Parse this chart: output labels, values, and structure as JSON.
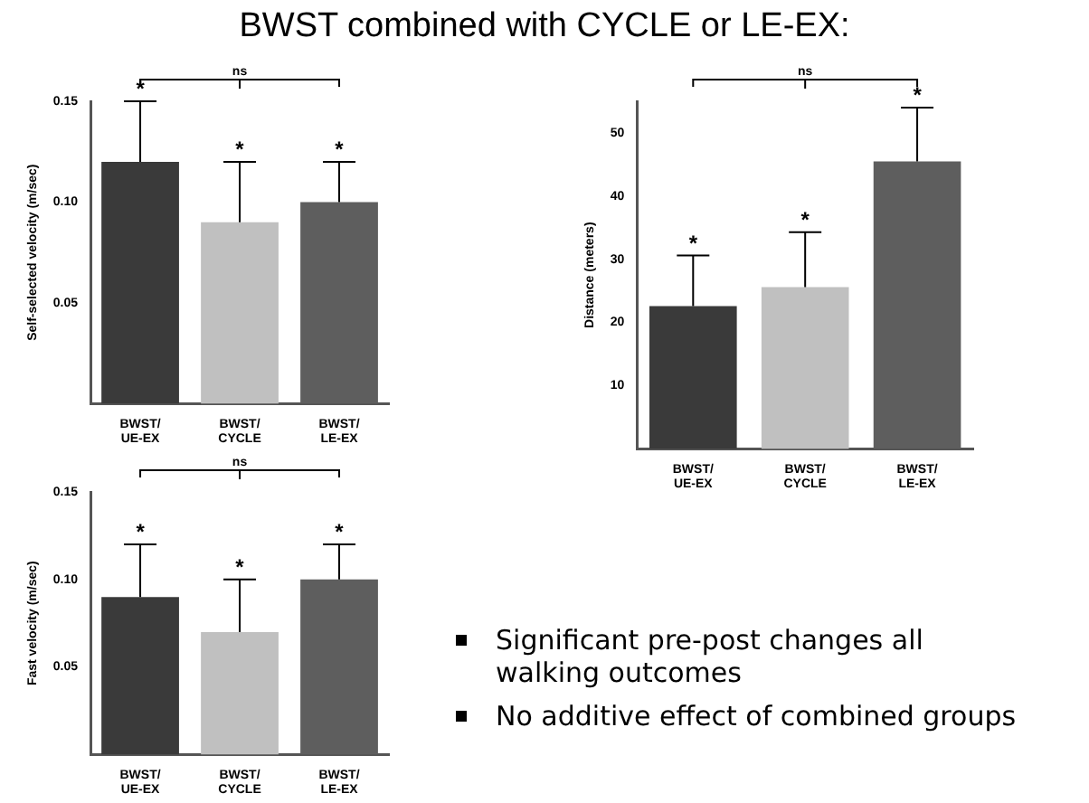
{
  "chart_data": [
    {
      "type": "bar",
      "title": "BWST combined with CYCLE or LE-EX:",
      "ylabel": "Self-selected velocity (m/sec)",
      "categories": [
        "BWST/\nUE-EX",
        "BWST/\nCYCLE",
        "BWST/\nLE-EX"
      ],
      "values": [
        0.12,
        0.09,
        0.1
      ],
      "colors": [
        "#3a3a3a",
        "#c0c0c0",
        "#5e5e5e"
      ],
      "errors": [
        [
          0.12,
          0.15
        ],
        [
          0.09,
          0.12
        ],
        [
          0.1,
          0.12
        ]
      ],
      "ylim": [
        0,
        0.15
      ],
      "yticks": [
        {
          "value": 0.05,
          "label": "0.05"
        },
        {
          "value": 0.1,
          "label": "0.10"
        },
        {
          "value": 0.15,
          "label": "0.15"
        }
      ],
      "grid": false,
      "legend": false,
      "annotations": [
        "ns",
        {
          "text": "*",
          "x": "BWST/\nUE-EX",
          "y": 0.15
        },
        {
          "text": "*",
          "x": "BWST/\nCYCLE",
          "y": 0.12
        },
        {
          "text": "*",
          "x": "BWST/\nLE-EX",
          "y": 0.12
        }
      ]
    },
    {
      "type": "bar",
      "ylabel": "Distance (meters)",
      "categories": [
        "BWST/\nUE-EX",
        "BWST/\nCYCLE",
        "BWST/\nLE-EX"
      ],
      "values": [
        22.6,
        25.6,
        45.5
      ],
      "colors": [
        "#3a3a3a",
        "#c0c0c0",
        "#5e5e5e"
      ],
      "errors": [
        [
          22.6,
          30.6
        ],
        [
          25.6,
          34.3
        ],
        [
          45.5,
          54
        ]
      ],
      "ylim": [
        0,
        55
      ],
      "yticks": [
        10,
        20,
        30,
        40,
        50
      ],
      "grid": false,
      "legend": false,
      "annotations": [
        "ns",
        {
          "text": "*",
          "x": "BWST/\nUE-EX",
          "y": 30.6
        },
        {
          "text": "*",
          "x": "BWST/\nCYCLE",
          "y": 34.3
        },
        {
          "text": "*",
          "x": "BWST/\nLE-EX",
          "y": 54
        }
      ]
    },
    {
      "type": "bar",
      "ylabel": "Fast velocity (m/sec)",
      "categories": [
        "BWST/\nUE-EX",
        "BWST/\nCYCLE",
        "BWST/\nLE-EX"
      ],
      "values": [
        0.09,
        0.07,
        0.1
      ],
      "colors": [
        "#3a3a3a",
        "#c0c0c0",
        "#5e5e5e"
      ],
      "errors": [
        [
          0.09,
          0.12
        ],
        [
          0.07,
          0.1
        ],
        [
          0.1,
          0.12
        ]
      ],
      "ylim": [
        0,
        0.15
      ],
      "yticks": [
        {
          "value": 0.05,
          "label": "0.05"
        },
        {
          "value": 0.1,
          "label": "0.10"
        },
        {
          "value": 0.15,
          "label": "0.15"
        }
      ],
      "grid": false,
      "legend": false,
      "annotations": [
        "ns",
        {
          "text": "*",
          "x": "BWST/\nUE-EX",
          "y": 0.12
        },
        {
          "text": "*",
          "x": "BWST/\nCYCLE",
          "y": 0.1
        },
        {
          "text": "*",
          "x": "BWST/\nLE-EX",
          "y": 0.12
        }
      ]
    },
    {
      "type": "other",
      "annotations": [
        "Significant pre-post changes all walking outcomes",
        "No additive effect of combined groups"
      ]
    }
  ]
}
